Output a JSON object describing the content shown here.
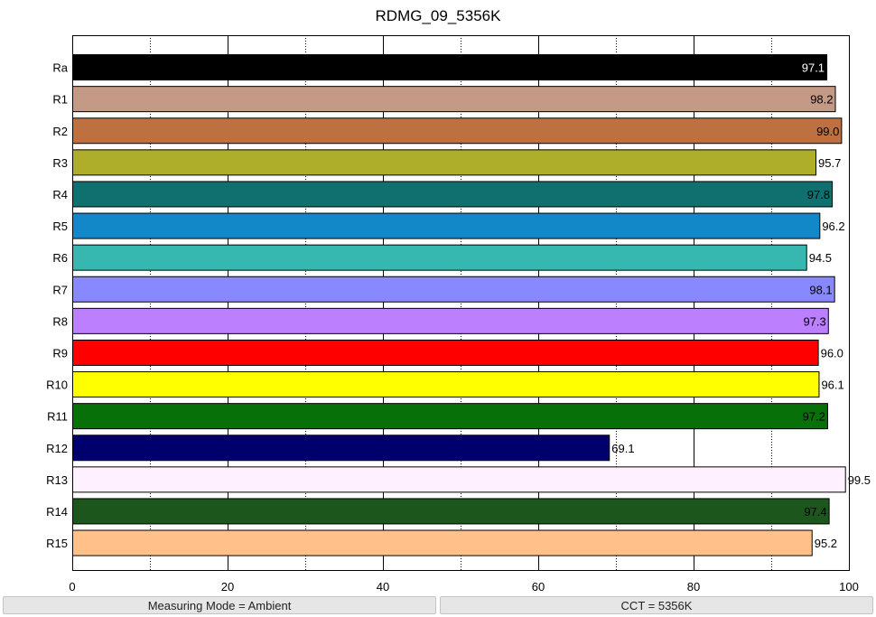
{
  "chart_data": {
    "type": "bar",
    "orientation": "horizontal",
    "title": "RDMG_09_5356K",
    "xlim": [
      0,
      100
    ],
    "x_ticks": [
      0,
      20,
      40,
      60,
      80,
      100
    ],
    "x_tick_labels": [
      "0",
      "20",
      "40",
      "60",
      "80",
      "100"
    ],
    "grid": "vertical dotted at 10, 30, 50, 70, 90; solid at 20, 40, 60, 80",
    "categories": [
      "Ra",
      "R1",
      "R2",
      "R3",
      "R4",
      "R5",
      "R6",
      "R7",
      "R8",
      "R9",
      "R10",
      "R11",
      "R12",
      "R13",
      "R14",
      "R15"
    ],
    "values": [
      97.1,
      98.2,
      99.0,
      95.7,
      97.8,
      96.2,
      94.5,
      98.1,
      97.3,
      96.0,
      96.1,
      97.2,
      69.1,
      99.5,
      97.4,
      95.2
    ],
    "value_labels": [
      "97.1",
      "98.2",
      "99.0",
      "95.7",
      "97.8",
      "96.2",
      "94.5",
      "98.1",
      "97.3",
      "96.0",
      "96.1",
      "97.2",
      "69.1",
      "99.5",
      "97.4",
      "95.2"
    ],
    "bar_colors": [
      "#000000",
      "#c49a86",
      "#bd7040",
      "#aeae2a",
      "#107070",
      "#1288c8",
      "#36b8b0",
      "#8888ff",
      "#bc80ff",
      "#ff0000",
      "#ffff00",
      "#087008",
      "#00006c",
      "#fff0ff",
      "#1c561c",
      "#ffc08a"
    ],
    "value_label_colors": [
      "#ffffff",
      "#000000",
      "#000000",
      "#000000",
      "#000000",
      "#000000",
      "#000000",
      "#000000",
      "#000000",
      "#000000",
      "#000000",
      "#000000",
      "#000000",
      "#000000",
      "#000000",
      "#000000"
    ],
    "value_label_inside": [
      true,
      true,
      true,
      false,
      true,
      false,
      false,
      true,
      true,
      false,
      false,
      true,
      false,
      false,
      true,
      false
    ]
  },
  "status": {
    "left": "Measuring Mode = Ambient",
    "right": "CCT = 5356K"
  }
}
